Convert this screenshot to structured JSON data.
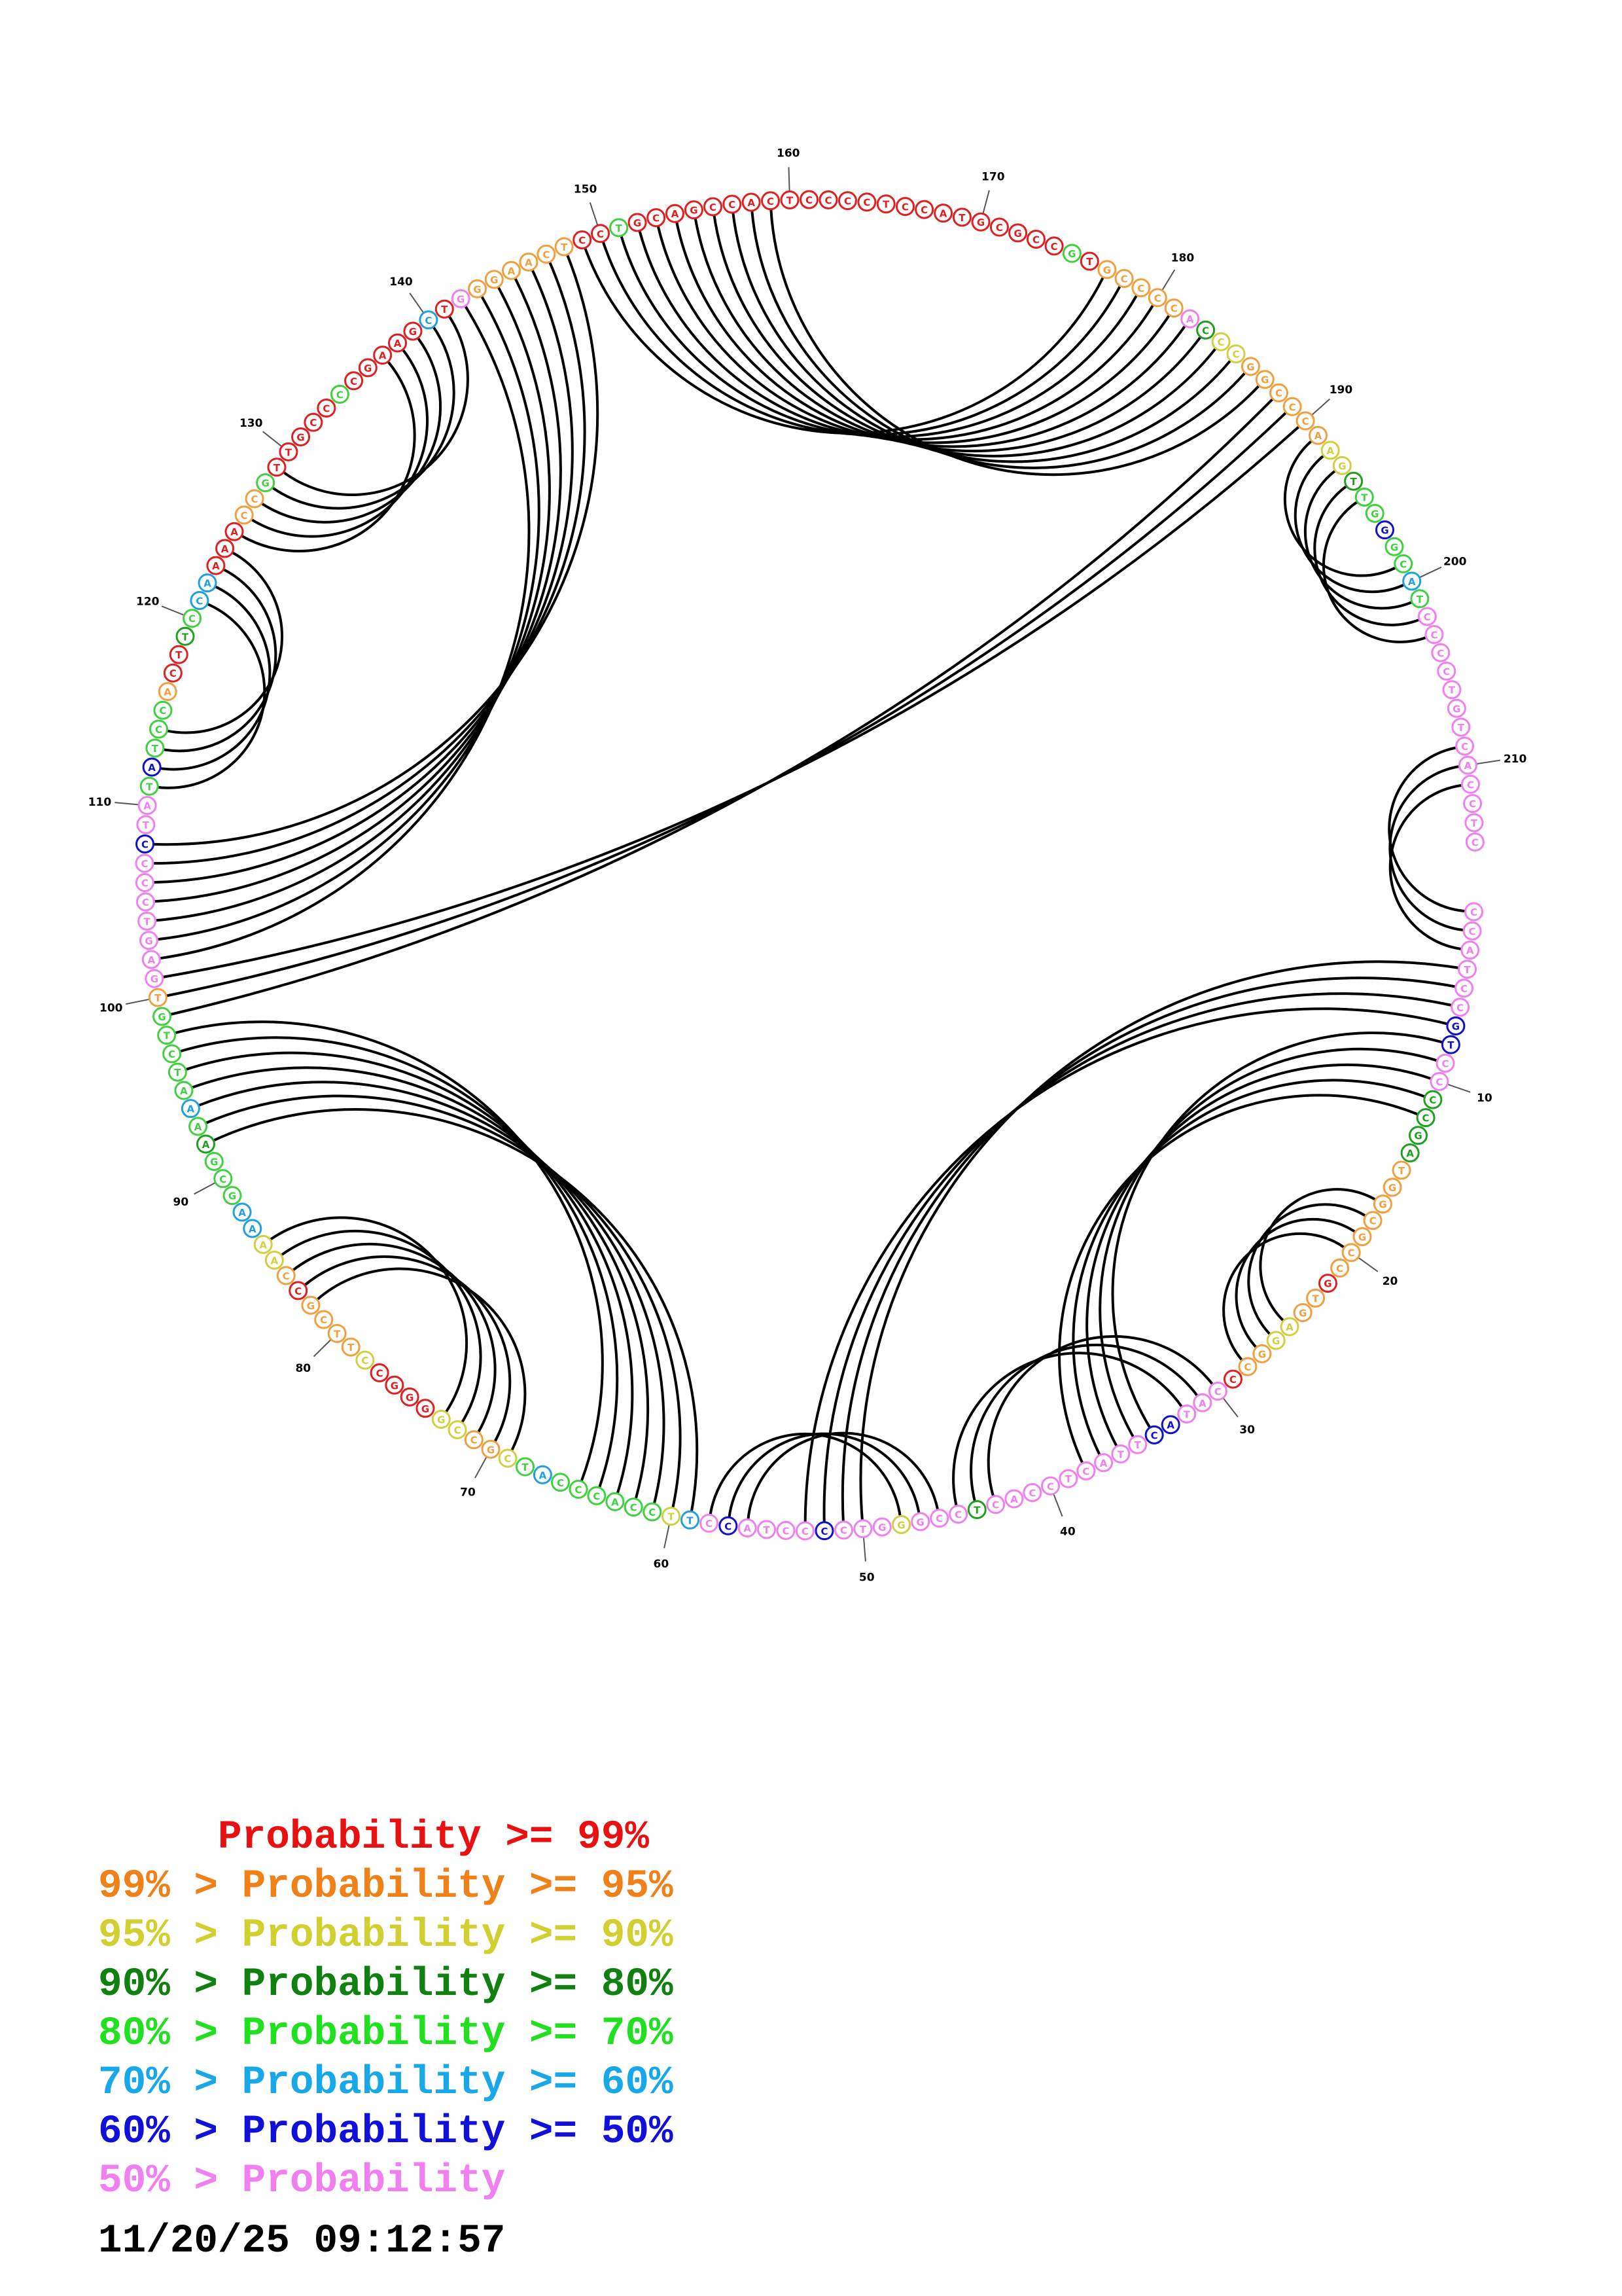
{
  "sequence": "CCATCCGTCCCCGATGGCGCCGTGAGGCCCATACTTACTCCACTCCGGGTCCCCTACCTTCCACCCATCGCCGGGGCCTTCGCCAAAAGCGAAAATCTGTGAGTCCCCTATATCCACTTCCAAAACCGTTGCCCCGAAGCTGGGAACTCCTGCAGCCACTCCCCTCCATGCGCCGTGCCCCACCCGGCCCAAGTTGGGCATCCCCTGTCACCTC",
  "base_colors": [
    "#f080f0",
    "#f080f0",
    "#f080f0",
    "#f080f0",
    "#f080f0",
    "#f080f0",
    "#1010d0",
    "#1010d0",
    "#f080f0",
    "#f080f0",
    "#20a020",
    "#20a020",
    "#20a020",
    "#20a020",
    "#f0a040",
    "#f0a040",
    "#f0a040",
    "#f0a040",
    "#f0a040",
    "#f0a040",
    "#f0a040",
    "#e02020",
    "#f0a040",
    "#f0a040",
    "#d0d040",
    "#d0d040",
    "#f0a040",
    "#f0a040",
    "#e02020",
    "#f080f0",
    "#f080f0",
    "#f080f0",
    "#1010d0",
    "#1010d0",
    "#f080f0",
    "#f080f0",
    "#f080f0",
    "#f080f0",
    "#f080f0",
    "#f080f0",
    "#f080f0",
    "#f080f0",
    "#f080f0",
    "#20a020",
    "#f080f0",
    "#f080f0",
    "#f080f0",
    "#d0d040",
    "#f080f0",
    "#f080f0",
    "#f080f0",
    "#1010d0",
    "#f080f0",
    "#f080f0",
    "#f080f0",
    "#f080f0",
    "#1010d0",
    "#f080f0",
    "#20a0e0",
    "#d0d040",
    "#40d040",
    "#40d040",
    "#40d040",
    "#40d040",
    "#40d040",
    "#40d040",
    "#20a0e0",
    "#40d040",
    "#d0d040",
    "#f0a040",
    "#f0a040",
    "#d0d040",
    "#d0d040",
    "#e02020",
    "#e02020",
    "#e02020",
    "#e02020",
    "#d0d040",
    "#f0a040",
    "#f0a040",
    "#f0a040",
    "#f0a040",
    "#e02020",
    "#f0a040",
    "#d0d040",
    "#d0d040",
    "#20a0e0",
    "#20a0e0",
    "#40d040",
    "#40d040",
    "#40d040",
    "#20a020",
    "#40d040",
    "#20a0e0",
    "#40d040",
    "#40d040",
    "#40d040",
    "#40d040",
    "#40d040",
    "#f0a040",
    "#f080f0",
    "#f080f0",
    "#f080f0",
    "#f080f0",
    "#f080f0",
    "#f080f0",
    "#f080f0",
    "#1010d0",
    "#f080f0",
    "#f080f0",
    "#40d040",
    "#1010d0",
    "#40d040",
    "#40d040",
    "#40d040",
    "#f0a040",
    "#e02020",
    "#e02020",
    "#20a020",
    "#40d040",
    "#20a0e0",
    "#20a0e0",
    "#e02020",
    "#e02020",
    "#e02020",
    "#f0a040",
    "#f0a040",
    "#40d040",
    "#e02020",
    "#e02020",
    "#e02020",
    "#e02020",
    "#e02020",
    "#40d040",
    "#e02020",
    "#e02020",
    "#e02020",
    "#e02020",
    "#e02020",
    "#20a0e0",
    "#e02020",
    "#f080f0",
    "#f0a040",
    "#f0a040",
    "#f0a040",
    "#f0a040",
    "#f0a040",
    "#f0a040",
    "#e02020",
    "#e02020",
    "#40d040",
    "#e02020",
    "#e02020",
    "#e02020",
    "#e02020",
    "#e02020",
    "#e02020",
    "#e02020",
    "#e02020",
    "#e02020",
    "#e02020",
    "#e02020",
    "#e02020",
    "#e02020",
    "#e02020",
    "#e02020",
    "#e02020",
    "#e02020",
    "#e02020",
    "#e02020",
    "#e02020",
    "#e02020",
    "#e02020",
    "#e02020",
    "#40d040",
    "#e02020",
    "#f0a040",
    "#f0a040",
    "#f0a040",
    "#f0a040",
    "#f0a040",
    "#f080f0",
    "#20a020",
    "#d0d040",
    "#d0d040",
    "#f0a040",
    "#f0a040",
    "#f0a040",
    "#f0a040",
    "#f0a040",
    "#f0a040",
    "#d0d040",
    "#d0d040",
    "#20a020",
    "#40d040",
    "#40d040",
    "#1010d0",
    "#40d040",
    "#40d040",
    "#20a0e0",
    "#40d040",
    "#f080f0",
    "#f080f0",
    "#f080f0",
    "#f080f0"
  ],
  "position_labels": [
    10,
    20,
    30,
    40,
    50,
    60,
    70,
    80,
    90,
    100,
    110,
    120,
    130,
    140,
    150,
    160,
    170,
    180,
    190,
    200,
    210
  ],
  "pairs": [
    [
      1,
      209
    ],
    [
      2,
      210
    ],
    [
      3,
      211
    ],
    [
      4,
      50
    ],
    [
      5,
      51
    ],
    [
      6,
      52
    ],
    [
      7,
      53
    ],
    [
      8,
      34
    ],
    [
      9,
      35
    ],
    [
      10,
      36
    ],
    [
      11,
      37
    ],
    [
      12,
      38
    ],
    [
      17,
      25
    ],
    [
      18,
      26
    ],
    [
      19,
      27
    ],
    [
      20,
      28
    ],
    [
      30,
      43
    ],
    [
      31,
      44
    ],
    [
      32,
      45
    ],
    [
      46,
      56
    ],
    [
      47,
      57
    ],
    [
      48,
      58
    ],
    [
      59,
      92
    ],
    [
      60,
      93
    ],
    [
      61,
      94
    ],
    [
      62,
      95
    ],
    [
      63,
      96
    ],
    [
      64,
      97
    ],
    [
      65,
      98
    ],
    [
      69,
      82
    ],
    [
      70,
      83
    ],
    [
      71,
      84
    ],
    [
      72,
      85
    ],
    [
      73,
      86
    ],
    [
      99,
      188
    ],
    [
      100,
      189
    ],
    [
      101,
      190
    ],
    [
      102,
      142
    ],
    [
      103,
      143
    ],
    [
      104,
      144
    ],
    [
      105,
      145
    ],
    [
      106,
      146
    ],
    [
      107,
      147
    ],
    [
      108,
      148
    ],
    [
      111,
      121
    ],
    [
      112,
      122
    ],
    [
      113,
      123
    ],
    [
      114,
      124
    ],
    [
      125,
      137
    ],
    [
      126,
      138
    ],
    [
      127,
      139
    ],
    [
      128,
      140
    ],
    [
      129,
      141
    ],
    [
      149,
      177
    ],
    [
      150,
      178
    ],
    [
      151,
      179
    ],
    [
      152,
      180
    ],
    [
      153,
      181
    ],
    [
      154,
      182
    ],
    [
      155,
      183
    ],
    [
      156,
      184
    ],
    [
      157,
      185
    ],
    [
      158,
      186
    ],
    [
      159,
      187
    ],
    [
      191,
      199
    ],
    [
      192,
      200
    ],
    [
      193,
      201
    ],
    [
      194,
      202
    ],
    [
      195,
      203
    ]
  ],
  "legend": [
    {
      "prefix": "     ",
      "label": "Probability >= 99%",
      "color": "#e81010"
    },
    {
      "prefix": "99% > ",
      "label": "Probability >= 95%",
      "color": "#f08018"
    },
    {
      "prefix": "95% > ",
      "label": "Probability >= 90%",
      "color": "#d0d030"
    },
    {
      "prefix": "90% > ",
      "label": "Probability >= 80%",
      "color": "#108010"
    },
    {
      "prefix": "80% > ",
      "label": "Probability >= 70%",
      "color": "#20e020"
    },
    {
      "prefix": "70% > ",
      "label": "Probability >= 60%",
      "color": "#18a8e8"
    },
    {
      "prefix": "60% > ",
      "label": "Probability >= 50%",
      "color": "#1010d8"
    },
    {
      "prefix": "50% > ",
      "label": "Probability",
      "color": "#f080f0"
    }
  ],
  "timestamp": "11/20/25 09:12:57"
}
